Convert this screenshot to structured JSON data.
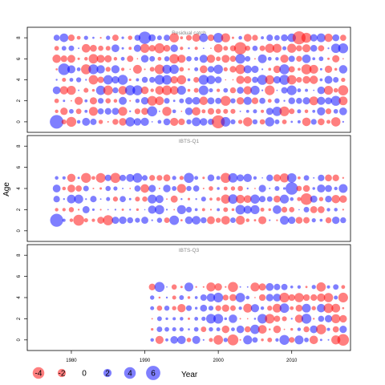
{
  "chart_data": {
    "type": "scatter",
    "ylabel": "Age",
    "xlabel": "Year",
    "xlim": [
      1974,
      2018
    ],
    "x_ticks": [
      "1980",
      "1990",
      "2000",
      "2010"
    ],
    "colors": {
      "positive": "#0000ff",
      "negative": "#ff0000"
    },
    "legend": {
      "placement": "bottom",
      "entries": [
        {
          "label": "-4",
          "value": -4
        },
        {
          "label": "-2",
          "value": -2
        },
        {
          "label": "0",
          "value": 0
        },
        {
          "label": "2",
          "value": 2
        },
        {
          "label": "4",
          "value": 4
        },
        {
          "label": "6",
          "value": 6
        }
      ]
    },
    "panels": [
      {
        "title": "Residual catch",
        "ylim": [
          -1,
          9
        ],
        "y_ticks": [
          "0",
          "2",
          "4",
          "6",
          "8"
        ],
        "years": [
          1978,
          2017
        ],
        "ages": [
          0,
          1,
          2,
          3,
          4,
          5,
          6,
          7,
          8
        ],
        "seed": 11,
        "highlights": [
          {
            "year": 1978,
            "age": 0,
            "value": 5.5
          },
          {
            "year": 2000,
            "age": 0,
            "value": -5.0
          },
          {
            "year": 2011,
            "age": 8,
            "value": -5.0
          },
          {
            "year": 1990,
            "age": 8,
            "value": 4.5
          },
          {
            "year": 2003,
            "age": 7,
            "value": -4.5
          },
          {
            "year": 1979,
            "age": 5,
            "value": 4.0
          }
        ]
      },
      {
        "title": "IBTS-Q1",
        "ylim": [
          -1,
          9
        ],
        "y_ticks": [
          "0",
          "2",
          "4",
          "6",
          "8"
        ],
        "years": [
          1978,
          2017
        ],
        "ages": [
          1,
          2,
          3,
          4,
          5
        ],
        "seed": 23,
        "highlights": [
          {
            "year": 1978,
            "age": 1,
            "value": 5.0
          },
          {
            "year": 2010,
            "age": 4,
            "value": 4.5
          },
          {
            "year": 2012,
            "age": 3,
            "value": -4.0
          },
          {
            "year": 1981,
            "age": 1,
            "value": -3.5
          }
        ]
      },
      {
        "title": "IBTS-Q3",
        "ylim": [
          -1,
          9
        ],
        "y_ticks": [
          "0",
          "2",
          "4",
          "6",
          "8"
        ],
        "years": [
          1991,
          2017
        ],
        "ages": [
          0,
          1,
          2,
          3,
          4,
          5
        ],
        "seed": 37,
        "highlights": [
          {
            "year": 2017,
            "age": 0,
            "value": -4.0
          },
          {
            "year": 2002,
            "age": 0,
            "value": -3.5
          },
          {
            "year": 1992,
            "age": 5,
            "value": 3.0
          },
          {
            "year": 2002,
            "age": 5,
            "value": -3.0
          }
        ]
      }
    ]
  }
}
